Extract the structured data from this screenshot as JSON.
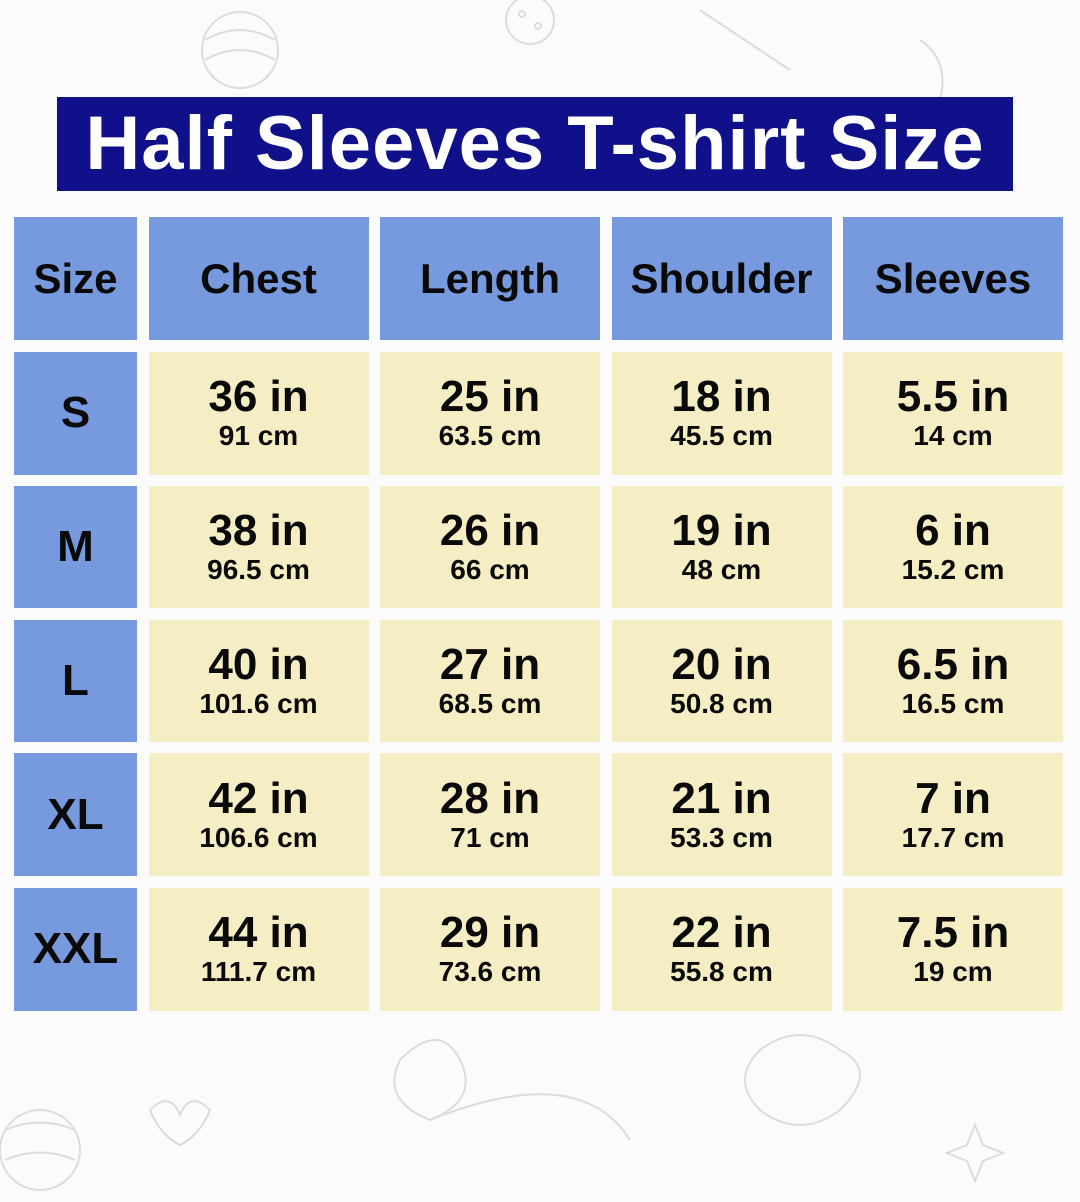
{
  "title": "Half Sleeves T-shirt Size",
  "colors": {
    "banner": "#10108a",
    "header_cell": "#7799dd",
    "value_cell": "#f5eec4"
  },
  "columns": [
    "Size",
    "Chest",
    "Length",
    "Shoulder",
    "Sleeves"
  ],
  "rows": [
    {
      "size": "S",
      "values": [
        {
          "in": "36 in",
          "cm": "91 cm"
        },
        {
          "in": "25 in",
          "cm": "63.5 cm"
        },
        {
          "in": "18 in",
          "cm": "45.5 cm"
        },
        {
          "in": "5.5 in",
          "cm": "14 cm"
        }
      ]
    },
    {
      "size": "M",
      "values": [
        {
          "in": "38 in",
          "cm": "96.5 cm"
        },
        {
          "in": "26 in",
          "cm": "66 cm"
        },
        {
          "in": "19 in",
          "cm": "48 cm"
        },
        {
          "in": "6 in",
          "cm": "15.2 cm"
        }
      ]
    },
    {
      "size": "L",
      "values": [
        {
          "in": "40 in",
          "cm": "101.6 cm"
        },
        {
          "in": "27 in",
          "cm": "68.5 cm"
        },
        {
          "in": "20 in",
          "cm": "50.8 cm"
        },
        {
          "in": "6.5 in",
          "cm": "16.5 cm"
        }
      ]
    },
    {
      "size": "XL",
      "values": [
        {
          "in": "42 in",
          "cm": "106.6 cm"
        },
        {
          "in": "28 in",
          "cm": "71 cm"
        },
        {
          "in": "21 in",
          "cm": "53.3 cm"
        },
        {
          "in": "7 in",
          "cm": "17.7 cm"
        }
      ]
    },
    {
      "size": "XXL",
      "values": [
        {
          "in": "44 in",
          "cm": "111.7 cm"
        },
        {
          "in": "29 in",
          "cm": "73.6 cm"
        },
        {
          "in": "22 in",
          "cm": "55.8 cm"
        },
        {
          "in": "7.5 in",
          "cm": "19 cm"
        }
      ]
    }
  ]
}
